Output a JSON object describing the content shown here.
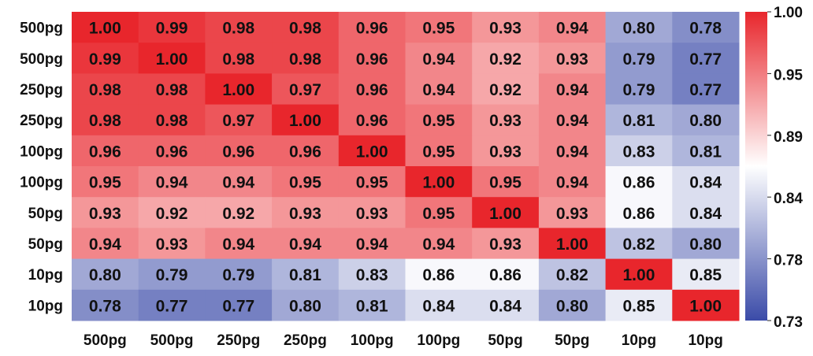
{
  "chart_data": {
    "type": "heatmap",
    "title": "",
    "xlabel": "",
    "ylabel": "",
    "row_labels": [
      "500pg",
      "500pg",
      "250pg",
      "250pg",
      "100pg",
      "100pg",
      "50pg",
      "50pg",
      "10pg",
      "10pg"
    ],
    "col_labels": [
      "500pg",
      "500pg",
      "250pg",
      "250pg",
      "100pg",
      "100pg",
      "50pg",
      "50pg",
      "10pg",
      "10pg"
    ],
    "values": [
      [
        1.0,
        0.99,
        0.98,
        0.98,
        0.96,
        0.95,
        0.93,
        0.94,
        0.8,
        0.78
      ],
      [
        0.99,
        1.0,
        0.98,
        0.98,
        0.96,
        0.94,
        0.92,
        0.93,
        0.79,
        0.77
      ],
      [
        0.98,
        0.98,
        1.0,
        0.97,
        0.96,
        0.94,
        0.92,
        0.94,
        0.79,
        0.77
      ],
      [
        0.98,
        0.98,
        0.97,
        1.0,
        0.96,
        0.95,
        0.93,
        0.94,
        0.81,
        0.8
      ],
      [
        0.96,
        0.96,
        0.96,
        0.96,
        1.0,
        0.95,
        0.93,
        0.94,
        0.83,
        0.81
      ],
      [
        0.95,
        0.94,
        0.94,
        0.95,
        0.95,
        1.0,
        0.95,
        0.94,
        0.86,
        0.84
      ],
      [
        0.93,
        0.92,
        0.92,
        0.93,
        0.93,
        0.95,
        1.0,
        0.93,
        0.86,
        0.84
      ],
      [
        0.94,
        0.93,
        0.94,
        0.94,
        0.94,
        0.94,
        0.93,
        1.0,
        0.82,
        0.8
      ],
      [
        0.8,
        0.79,
        0.79,
        0.81,
        0.83,
        0.86,
        0.86,
        0.82,
        1.0,
        0.85
      ],
      [
        0.78,
        0.77,
        0.77,
        0.8,
        0.81,
        0.84,
        0.84,
        0.8,
        0.85,
        1.0
      ]
    ],
    "value_range": [
      0.73,
      1.0
    ],
    "colorbar": {
      "ticks": [
        "1.00",
        "0.95",
        "0.89",
        "0.84",
        "0.78",
        "0.73"
      ],
      "colors": {
        "low": "#3b4ba8",
        "mid": "#ffffff",
        "high": "#e8262c"
      },
      "mid_value": 0.865
    }
  }
}
